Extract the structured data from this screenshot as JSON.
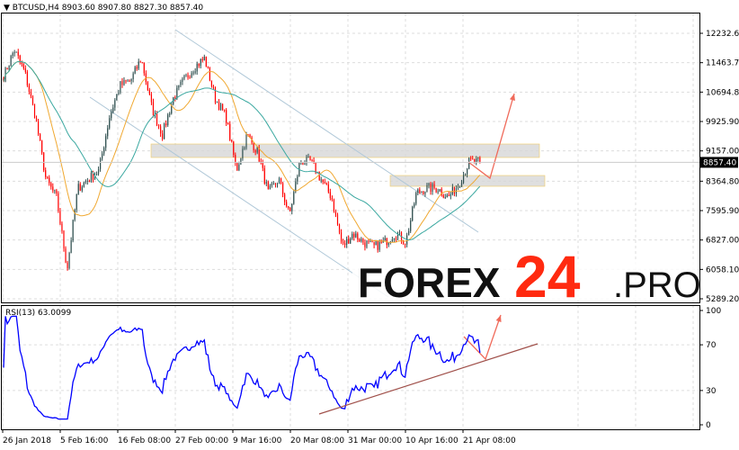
{
  "header": {
    "symbol": "BTCUSD,H4",
    "ohlc": "8903.60 8907.80 8827.30 8857.40"
  },
  "rsi_header": "RSI(13) 63.0099",
  "logo": {
    "main": "FOREX",
    "number": "24",
    "suffix": ".PRO"
  },
  "colors": {
    "bull": "#2f4f4f",
    "bear": "#ff0000",
    "ma_fast": "#f0a830",
    "ma_slow": "#3aa8a0",
    "rsi": "#0000ff",
    "arrow": "#f06a5a",
    "trendline": "#a0504a",
    "zone": "#d8d8d8",
    "channel": "#b0c8d8"
  },
  "chart_data": [
    {
      "type": "candlestick",
      "title": "BTCUSD,H4",
      "y_ticks": [
        "12232.60",
        "11463.70",
        "10694.80",
        "9925.90",
        "9157.00",
        "8364.80",
        "7595.90",
        "6827.00",
        "6058.10",
        "5289.20"
      ],
      "ylim": [
        5289.2,
        12232.6
      ],
      "current_price": "8857.40",
      "x_ticks": [
        "26 Jan 2018",
        "5 Feb 16:00",
        "16 Feb 08:00",
        "27 Feb 00:00",
        "9 Mar 16:00",
        "20 Mar 08:00",
        "31 Mar 00:00",
        "10 Apr 16:00",
        "21 Apr 08:00"
      ],
      "price_path": [
        11100,
        11800,
        11220,
        10050,
        8410,
        7940,
        6070,
        8180,
        8410,
        8650,
        10050,
        10870,
        10990,
        11580,
        10290,
        9580,
        10520,
        10990,
        11340,
        11580,
        10520,
        10050,
        8650,
        9580,
        9120,
        8060,
        8410,
        7470,
        8880,
        8880,
        8410,
        7940,
        6650,
        7000,
        6770,
        6650,
        6770,
        7000,
        6770,
        8060,
        8180,
        8180,
        7940,
        8290,
        8880,
        8857
      ],
      "grid": true,
      "overlays": [
        "moving-average-fast",
        "moving-average-slow",
        "descending-channel",
        "resistance-zone",
        "support-zone",
        "forecast-arrow-up"
      ]
    },
    {
      "type": "line",
      "title": "RSI(13) 63.0099",
      "y_ticks": [
        "100",
        "70",
        "30",
        "0"
      ],
      "ylim": [
        0,
        100
      ],
      "last_value": 63.0099,
      "overlays": [
        "rising-trendline",
        "forecast-arrow-up"
      ]
    }
  ]
}
